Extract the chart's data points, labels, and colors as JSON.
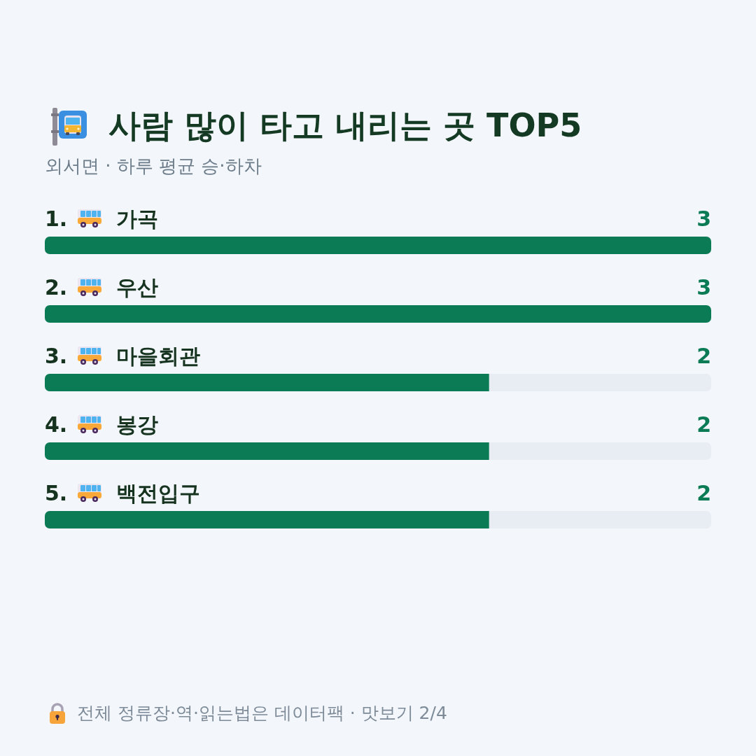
{
  "chart_data": {
    "type": "bar",
    "orientation": "horizontal",
    "title": "사람 많이 타고 내리는 곳 TOP5",
    "subtitle": "외서면 · 하루 평균 승·하차",
    "categories": [
      "1. 가곡",
      "2. 우산",
      "3. 마을회관",
      "4. 봉강",
      "5. 백전입구"
    ],
    "values": [
      3,
      3,
      2,
      2,
      2
    ],
    "color": "#0b7b55",
    "xlim": [
      0,
      3
    ],
    "data_labels": true,
    "tick_labels": "y",
    "annotations": [
      "전체 정류장·역·읽는법은 데이터팩 · 맛보기 2/4"
    ]
  }
}
